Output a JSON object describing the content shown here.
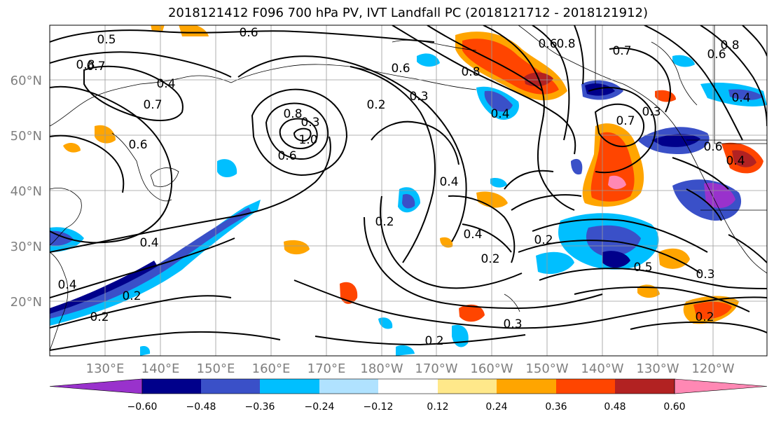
{
  "title": "2018121412 F096 700 hPa PV, IVT Landfall PC (2018121712 - 2018121912)",
  "latitude_labels": [
    "60°N",
    "50°N",
    "40°N",
    "30°N",
    "20°N"
  ],
  "longitude_labels": [
    "130°E",
    "140°E",
    "150°E",
    "160°E",
    "170°E",
    "180°W",
    "170°W",
    "160°W",
    "150°W",
    "140°W",
    "130°W",
    "120°W"
  ],
  "colorbar": {
    "tick_labels": [
      "−0.60",
      "−0.48",
      "−0.36",
      "−0.24",
      "−0.12",
      "0.12",
      "0.24",
      "0.36",
      "0.48",
      "0.60"
    ],
    "colors": [
      "#9932cc",
      "#00008b",
      "#3a50c8",
      "#00bfff",
      "#b0e2ff",
      "#ffffff",
      "#ffe88a",
      "#ffa500",
      "#ff4500",
      "#b22222",
      "#ff88b4"
    ]
  },
  "contour_labels": [
    "0.6",
    "0.5",
    "0.8",
    "0.7",
    "0.4",
    "0.7",
    "0.6",
    "0.8",
    "0.8",
    "1.0",
    "0.6",
    "0.6",
    "0.3",
    "0.2",
    "0.4",
    "0.6",
    "0.8",
    "0.7",
    "0.7",
    "0.6",
    "0.8",
    "0.4",
    "0.6",
    "0.4",
    "0.4",
    "0.2",
    "0.2",
    "0.4",
    "0.3",
    "0.2",
    "0.5",
    "0.3",
    "0.2",
    "0.2",
    "0.3",
    "0.4",
    "0.2",
    "0.4",
    "0.2",
    "0.3"
  ]
}
